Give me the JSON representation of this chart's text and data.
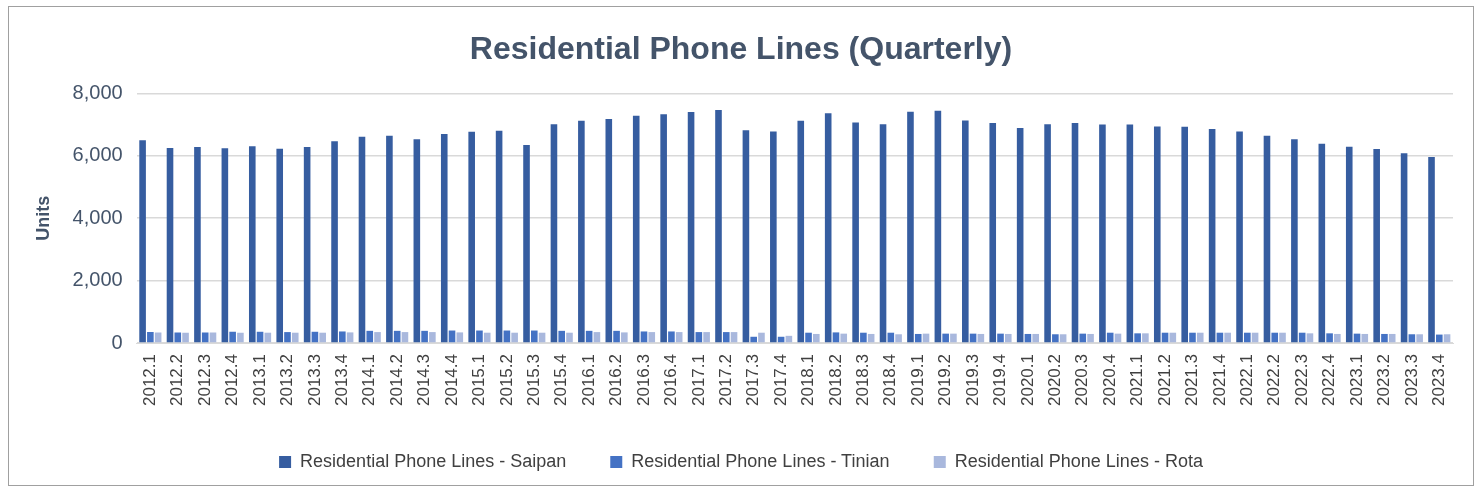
{
  "chart_data": {
    "type": "bar",
    "title": "Residential Phone Lines (Quarterly)",
    "ylabel": "Units",
    "categories": [
      "2012.1",
      "2012.2",
      "2012.3",
      "2012.4",
      "2013.1",
      "2013.2",
      "2013.3",
      "2013.4",
      "2014.1",
      "2014.2",
      "2014.3",
      "2014.4",
      "2015.1",
      "2015.2",
      "2015.3",
      "2015.4",
      "2016.1",
      "2016.2",
      "2016.3",
      "2016.4",
      "2017.1",
      "2017.2",
      "2017.3",
      "2017.4",
      "2018.1",
      "2018.2",
      "2018.3",
      "2018.4",
      "2019.1",
      "2019.2",
      "2019.3",
      "2019.4",
      "2020.1",
      "2020.2",
      "2020.3",
      "2020.4",
      "2021.1",
      "2021.2",
      "2021.3",
      "2021.4",
      "2022.1",
      "2022.2",
      "2022.3",
      "2022.4",
      "2023.1",
      "2023.2",
      "2023.3",
      "2023.4"
    ],
    "series": [
      {
        "name": "Residential Phone Lines - Saipan",
        "color": "#365da0",
        "values": [
          6500,
          6250,
          6280,
          6240,
          6310,
          6230,
          6280,
          6470,
          6610,
          6640,
          6530,
          6700,
          6770,
          6800,
          6350,
          7010,
          7120,
          7180,
          7280,
          7330,
          7400,
          7470,
          6820,
          6780,
          7120,
          7360,
          7070,
          7010,
          7410,
          7440,
          7130,
          7050,
          6890,
          7010,
          7050,
          7000,
          7000,
          6940,
          6930,
          6860,
          6780,
          6640,
          6530,
          6390,
          6290,
          6220,
          6080,
          5960
        ]
      },
      {
        "name": "Residential Phone Lines - Tinian",
        "color": "#4472c4",
        "values": [
          350,
          340,
          340,
          360,
          360,
          350,
          360,
          370,
          390,
          390,
          390,
          400,
          400,
          400,
          400,
          390,
          390,
          390,
          370,
          370,
          350,
          350,
          200,
          200,
          330,
          340,
          330,
          330,
          290,
          300,
          300,
          300,
          290,
          280,
          300,
          330,
          310,
          330,
          330,
          330,
          330,
          330,
          330,
          310,
          300,
          290,
          280,
          270
        ]
      },
      {
        "name": "Residential Phone Lines - Rota",
        "color": "#a9b8dd",
        "values": [
          340,
          330,
          340,
          330,
          330,
          330,
          330,
          340,
          350,
          350,
          350,
          340,
          330,
          330,
          330,
          330,
          350,
          340,
          350,
          350,
          350,
          350,
          330,
          230,
          290,
          300,
          290,
          280,
          300,
          300,
          290,
          290,
          290,
          280,
          290,
          300,
          310,
          330,
          330,
          330,
          330,
          330,
          310,
          290,
          290,
          290,
          280,
          280
        ]
      }
    ],
    "ylim": [
      0,
      8000
    ],
    "yticks": [
      0,
      {
        "value": 2000,
        "label": "2,000"
      },
      {
        "value": 4000,
        "label": "4,000"
      },
      {
        "value": 6000,
        "label": "6,000"
      },
      {
        "value": 8000,
        "label": "8,000"
      }
    ],
    "grid": "y",
    "legend": "bottom"
  }
}
